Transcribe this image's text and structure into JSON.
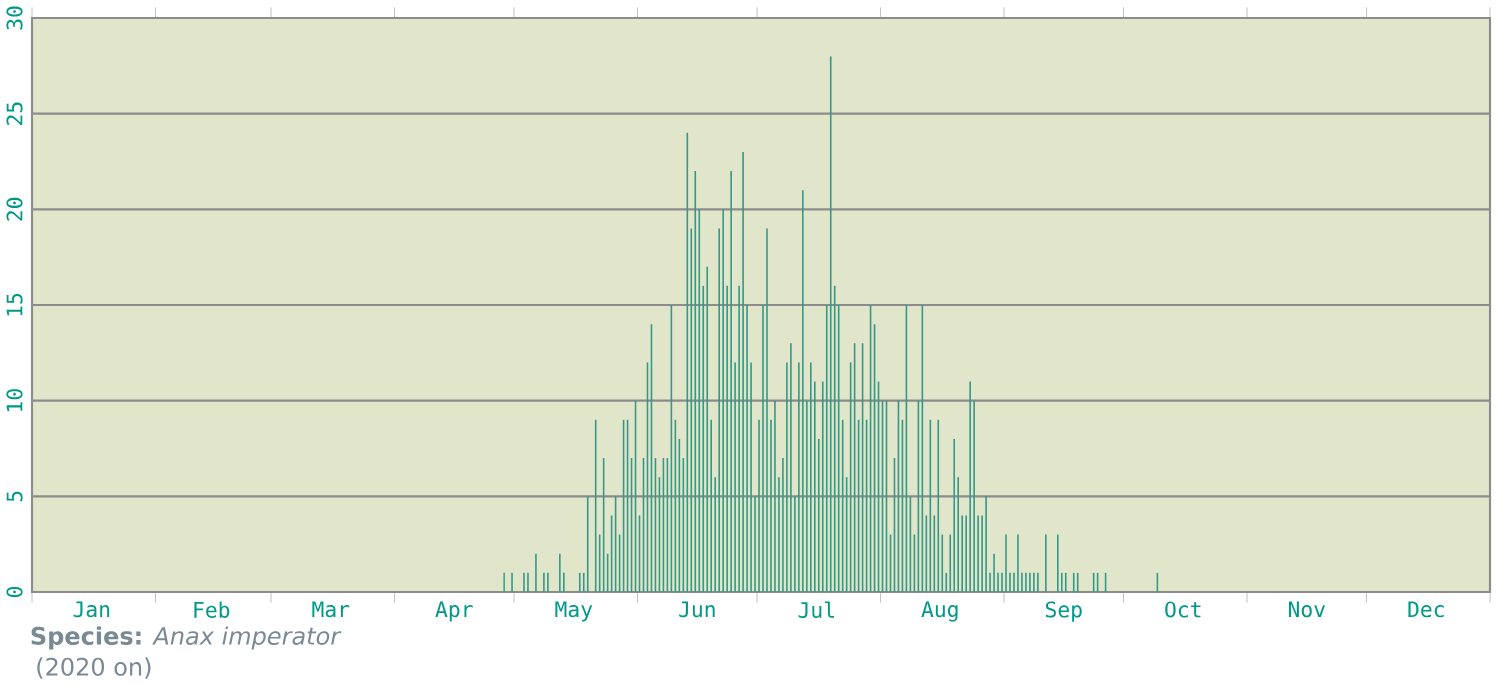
{
  "chart_data": {
    "type": "bar",
    "x": [
      "2020-04-28",
      "2020-04-30",
      "2020-05-03",
      "2020-05-04",
      "2020-05-06",
      "2020-05-08",
      "2020-05-09",
      "2020-05-12",
      "2020-05-13",
      "2020-05-17",
      "2020-05-18",
      "2020-05-19",
      "2020-05-21",
      "2020-05-22",
      "2020-05-23",
      "2020-05-24",
      "2020-05-25",
      "2020-05-26",
      "2020-05-27",
      "2020-05-28",
      "2020-05-29",
      "2020-05-30",
      "2020-05-31",
      "2020-06-01",
      "2020-06-02",
      "2020-06-03",
      "2020-06-04",
      "2020-06-05",
      "2020-06-06",
      "2020-06-07",
      "2020-06-08",
      "2020-06-09",
      "2020-06-10",
      "2020-06-11",
      "2020-06-12",
      "2020-06-13",
      "2020-06-14",
      "2020-06-15",
      "2020-06-16",
      "2020-06-17",
      "2020-06-18",
      "2020-06-19",
      "2020-06-20",
      "2020-06-21",
      "2020-06-22",
      "2020-06-23",
      "2020-06-24",
      "2020-06-25",
      "2020-06-26",
      "2020-06-27",
      "2020-06-28",
      "2020-06-29",
      "2020-06-30",
      "2020-07-01",
      "2020-07-02",
      "2020-07-03",
      "2020-07-04",
      "2020-07-05",
      "2020-07-06",
      "2020-07-07",
      "2020-07-08",
      "2020-07-09",
      "2020-07-10",
      "2020-07-11",
      "2020-07-12",
      "2020-07-13",
      "2020-07-14",
      "2020-07-15",
      "2020-07-16",
      "2020-07-17",
      "2020-07-18",
      "2020-07-19",
      "2020-07-20",
      "2020-07-21",
      "2020-07-22",
      "2020-07-23",
      "2020-07-24",
      "2020-07-25",
      "2020-07-26",
      "2020-07-27",
      "2020-07-28",
      "2020-07-29",
      "2020-07-30",
      "2020-07-31",
      "2020-08-01",
      "2020-08-02",
      "2020-08-03",
      "2020-08-04",
      "2020-08-05",
      "2020-08-06",
      "2020-08-07",
      "2020-08-08",
      "2020-08-09",
      "2020-08-10",
      "2020-08-11",
      "2020-08-12",
      "2020-08-13",
      "2020-08-14",
      "2020-08-15",
      "2020-08-16",
      "2020-08-17",
      "2020-08-18",
      "2020-08-19",
      "2020-08-20",
      "2020-08-21",
      "2020-08-22",
      "2020-08-23",
      "2020-08-24",
      "2020-08-25",
      "2020-08-26",
      "2020-08-27",
      "2020-08-28",
      "2020-08-29",
      "2020-08-30",
      "2020-08-31",
      "2020-09-01",
      "2020-09-02",
      "2020-09-03",
      "2020-09-04",
      "2020-09-05",
      "2020-09-06",
      "2020-09-07",
      "2020-09-08",
      "2020-09-09",
      "2020-09-11",
      "2020-09-14",
      "2020-09-15",
      "2020-09-16",
      "2020-09-18",
      "2020-09-19",
      "2020-09-23",
      "2020-09-24",
      "2020-09-26",
      "2020-10-09"
    ],
    "values": [
      1,
      1,
      1,
      1,
      2,
      1,
      1,
      2,
      1,
      1,
      1,
      5,
      9,
      3,
      7,
      2,
      4,
      5,
      3,
      9,
      9,
      7,
      10,
      4,
      7,
      12,
      14,
      7,
      6,
      7,
      7,
      15,
      9,
      8,
      7,
      24,
      19,
      22,
      20,
      16,
      17,
      9,
      6,
      19,
      20,
      16,
      22,
      12,
      16,
      23,
      15,
      12,
      5,
      9,
      15,
      19,
      9,
      10,
      6,
      7,
      12,
      13,
      5,
      12,
      21,
      10,
      12,
      11,
      8,
      11,
      15,
      28,
      16,
      15,
      9,
      6,
      12,
      13,
      9,
      13,
      9,
      15,
      14,
      11,
      10,
      10,
      3,
      7,
      10,
      9,
      15,
      5,
      3,
      10,
      15,
      4,
      9,
      4,
      9,
      3,
      1,
      3,
      8,
      6,
      4,
      4,
      11,
      10,
      4,
      4,
      5,
      1,
      2,
      1,
      1,
      3,
      1,
      1,
      3,
      1,
      1,
      1,
      1,
      1,
      3,
      3,
      1,
      1,
      1,
      1,
      1,
      1,
      1,
      1
    ],
    "color": "#339988",
    "xlim": [
      "2020-01-01",
      "2021-01-01"
    ],
    "xticks": [
      {
        "value": "2020-01-01",
        "label": null
      },
      {
        "value": "2020-02-01",
        "label": null
      },
      {
        "value": "2020-03-01",
        "label": null
      },
      {
        "value": "2020-04-01",
        "label": null
      },
      {
        "value": "2020-05-01",
        "label": null
      },
      {
        "value": "2020-06-01",
        "label": null
      },
      {
        "value": "2020-07-01",
        "label": null
      },
      {
        "value": "2020-08-01",
        "label": null
      },
      {
        "value": "2020-09-01",
        "label": null
      },
      {
        "value": "2020-10-01",
        "label": null
      },
      {
        "value": "2020-11-01",
        "label": null
      },
      {
        "value": "2020-12-01",
        "label": null
      },
      {
        "value": "2021-01-01",
        "label": null
      },
      {
        "value": "2020-01-16",
        "label": "Jan"
      },
      {
        "value": "2020-02-15",
        "label": "Feb"
      },
      {
        "value": "2020-03-16",
        "label": "Mar"
      },
      {
        "value": "2020-04-16",
        "label": "Apr"
      },
      {
        "value": "2020-05-16",
        "label": "May"
      },
      {
        "value": "2020-06-16",
        "label": "Jun"
      },
      {
        "value": "2020-07-16",
        "label": "Jul"
      },
      {
        "value": "2020-08-16",
        "label": "Aug"
      },
      {
        "value": "2020-09-16",
        "label": "Sep"
      },
      {
        "value": "2020-10-16",
        "label": "Oct"
      },
      {
        "value": "2020-11-16",
        "label": "Nov"
      },
      {
        "value": "2020-12-16",
        "label": "Dec"
      }
    ],
    "ylim": [
      0,
      30
    ],
    "yticks": [
      0,
      5,
      10,
      15,
      20,
      25,
      30
    ],
    "grid": "y",
    "annotations": [
      "**Species:** *Anax imperator*",
      "(2020 on)"
    ]
  }
}
